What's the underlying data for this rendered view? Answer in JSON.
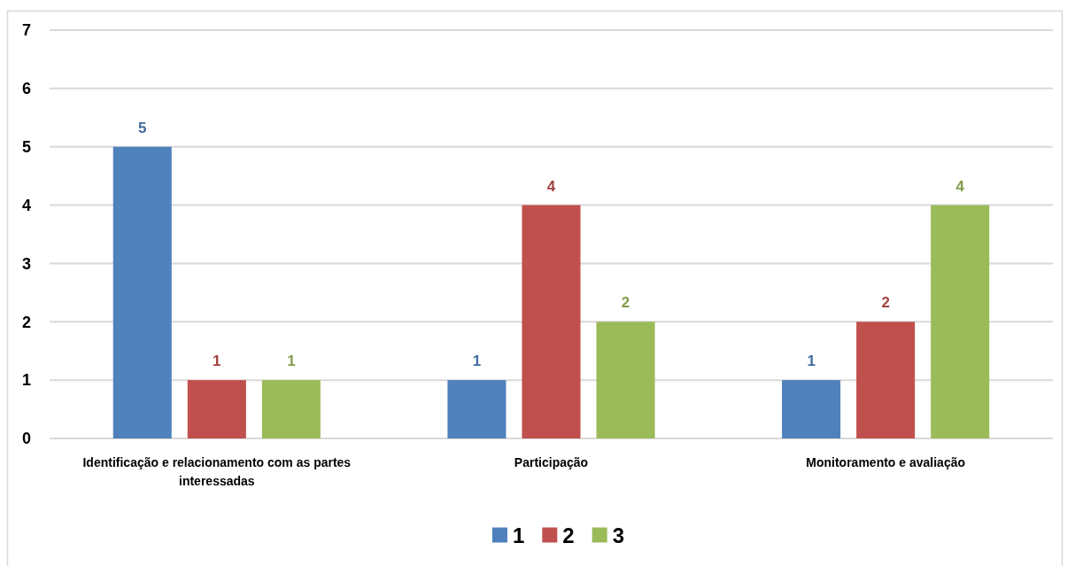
{
  "chart_data": {
    "type": "bar",
    "categories": [
      "Identificação e relacionamento com as partes interessadas",
      "Participação",
      "Monitoramento e avaliação"
    ],
    "series": [
      {
        "name": "1",
        "color": "#4f81bd",
        "values": [
          5,
          1,
          1
        ]
      },
      {
        "name": "2",
        "color": "#c0504d",
        "values": [
          1,
          4,
          2
        ]
      },
      {
        "name": "3",
        "color": "#9bbb59",
        "values": [
          1,
          2,
          4
        ]
      }
    ],
    "ylim": [
      0,
      7
    ],
    "yticks": [
      0,
      1,
      2,
      3,
      4,
      5,
      6,
      7
    ],
    "grid": "y",
    "legend": "bottom",
    "data_labels": true
  }
}
